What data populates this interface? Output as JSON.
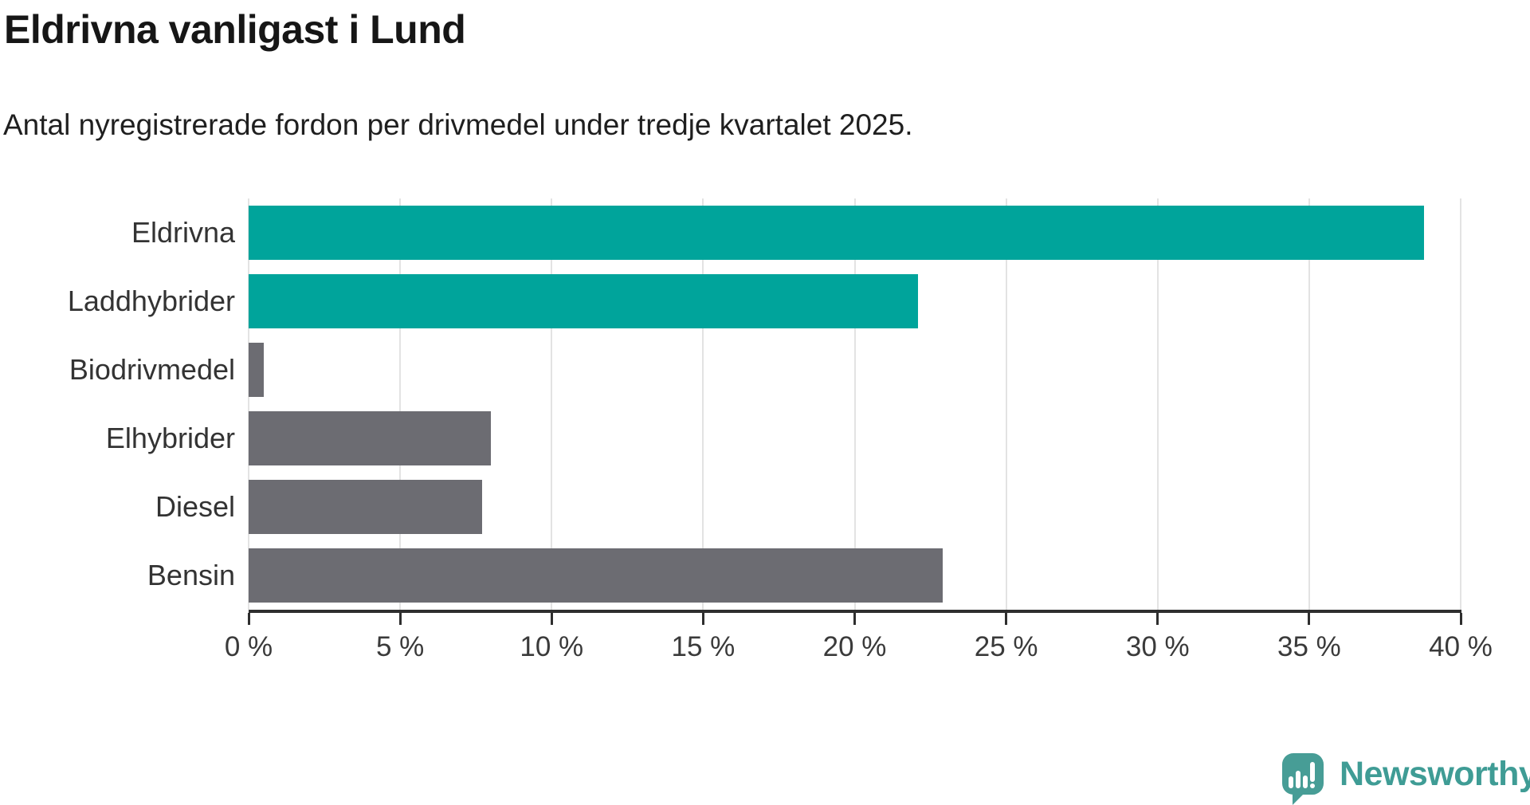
{
  "title": "Eldrivna vanligast i Lund",
  "subtitle": "Antal nyregistrerade fordon per drivmedel under tredje kvartalet 2025.",
  "branding": {
    "name": "Newsworthy",
    "logo_icon": "speech-bubble-bar-chart-icon",
    "logo_color": "#479d96",
    "text_color": "#3f9c95"
  },
  "colors": {
    "highlight_bar": "#00a49b",
    "default_bar": "#6c6c72",
    "grid": "#e3e3e3",
    "axis": "#2e2e2e",
    "title_text": "#161616",
    "label_text": "#333333"
  },
  "chart_data": {
    "type": "bar",
    "orientation": "horizontal",
    "title": "Eldrivna vanligast i Lund",
    "subtitle": "Antal nyregistrerade fordon per drivmedel under tredje kvartalet 2025.",
    "categories": [
      "Eldrivna",
      "Laddhybrider",
      "Biodrivmedel",
      "Elhybrider",
      "Diesel",
      "Bensin"
    ],
    "values": [
      38.8,
      22.1,
      0.5,
      8.0,
      7.7,
      22.9
    ],
    "unit": "%",
    "bar_colors": [
      "#00a49b",
      "#00a49b",
      "#6c6c72",
      "#6c6c72",
      "#6c6c72",
      "#6c6c72"
    ],
    "xlabel": "",
    "ylabel": "",
    "xlim": [
      0,
      40
    ],
    "x_tick_step": 5,
    "x_tick_labels": [
      "0 %",
      "5 %",
      "10 %",
      "15 %",
      "20 %",
      "25 %",
      "30 %",
      "35 %",
      "40 %"
    ],
    "grid": true,
    "legend": false
  }
}
